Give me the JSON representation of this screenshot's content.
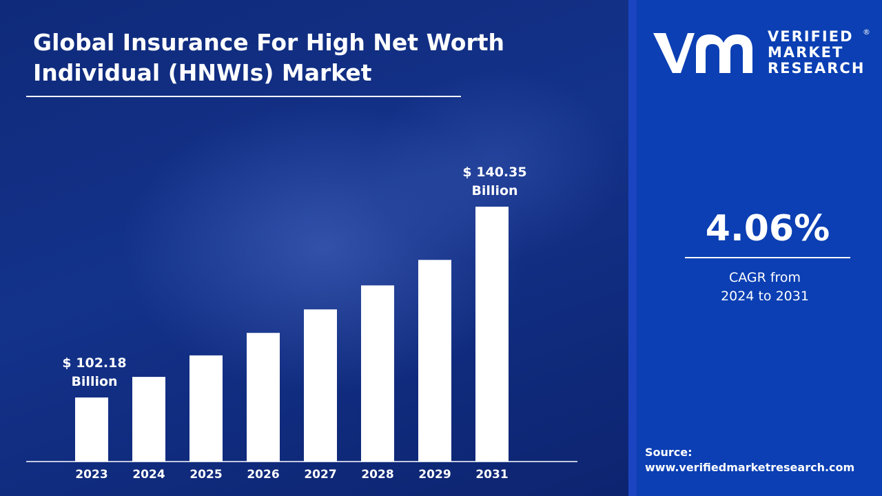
{
  "title": "Global Insurance For High Net Worth Individual (HNWIs) Market",
  "logo": {
    "line1": "VERIFIED",
    "line2": "MARKET",
    "line3": "RESEARCH",
    "registered": "®"
  },
  "cagr": {
    "value": "4.06%",
    "label_line1": "CAGR from",
    "label_line2": "2024 to 2031"
  },
  "source": {
    "label": "Source:",
    "url": "www.verifiedmarketresearch.com"
  },
  "colors": {
    "bar": "#ffffff",
    "right_panel": "#0b3fb3",
    "left_panel": "#13328a"
  },
  "chart_data": {
    "type": "bar",
    "title": "Global Insurance For High Net Worth Individual (HNWIs) Market",
    "xlabel": "",
    "ylabel": "",
    "categories": [
      "2023",
      "2024",
      "2025",
      "2026",
      "2027",
      "2028",
      "2029",
      "2031"
    ],
    "values": [
      102.18,
      106.3,
      110.6,
      115.1,
      119.8,
      124.6,
      129.7,
      140.35
    ],
    "unit": "USD Billion",
    "ylim": [
      80,
      145
    ],
    "grid": false,
    "legend": "none",
    "annotations": [
      {
        "index": 0,
        "line1": "$ 102.18",
        "line2": "Billion"
      },
      {
        "index": 7,
        "line1": "$ 140.35",
        "line2": "Billion"
      }
    ]
  }
}
